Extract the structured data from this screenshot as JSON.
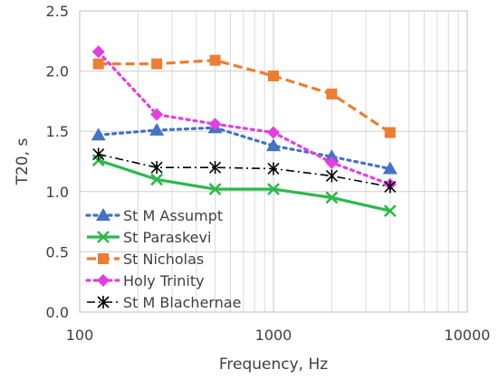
{
  "chart_data": {
    "type": "line",
    "title": "",
    "xlabel": "Frequency, Hz",
    "ylabel": "T20, s",
    "x_scale": "log",
    "xlim": [
      100,
      10000
    ],
    "ylim": [
      0.0,
      2.5
    ],
    "x_ticks": [
      "100",
      "1000",
      "10000"
    ],
    "y_ticks": [
      "0.0",
      "0.5",
      "1.0",
      "1.5",
      "2.0",
      "2.5"
    ],
    "grid": "on (log minor vertical gridlines)",
    "legend_position": "bottom-left, inside plot",
    "x": [
      125,
      250,
      500,
      1000,
      2000,
      4000
    ],
    "series": [
      {
        "name": "St M Assumpt",
        "values": [
          1.47,
          1.51,
          1.53,
          1.38,
          1.29,
          1.19
        ],
        "color": "#4472C4",
        "line": "dotted",
        "marker": "triangle"
      },
      {
        "name": "St Paraskevi",
        "values": [
          1.26,
          1.1,
          1.02,
          1.02,
          0.95,
          0.84
        ],
        "color": "#2EB84C",
        "line": "solid",
        "marker": "x"
      },
      {
        "name": "St Nicholas",
        "values": [
          2.06,
          2.06,
          2.09,
          1.96,
          1.81,
          1.49
        ],
        "color": "#ED7D31",
        "line": "dashed",
        "marker": "square"
      },
      {
        "name": "Holy Trinity",
        "values": [
          2.16,
          1.64,
          1.56,
          1.49,
          1.24,
          1.06
        ],
        "color": "#E040E0",
        "line": "dotted",
        "marker": "diamond"
      },
      {
        "name": "St M Blachernae",
        "values": [
          1.31,
          1.2,
          1.2,
          1.19,
          1.13,
          1.04
        ],
        "color": "#000000",
        "line": "dashdot",
        "marker": "asterisk"
      }
    ]
  }
}
